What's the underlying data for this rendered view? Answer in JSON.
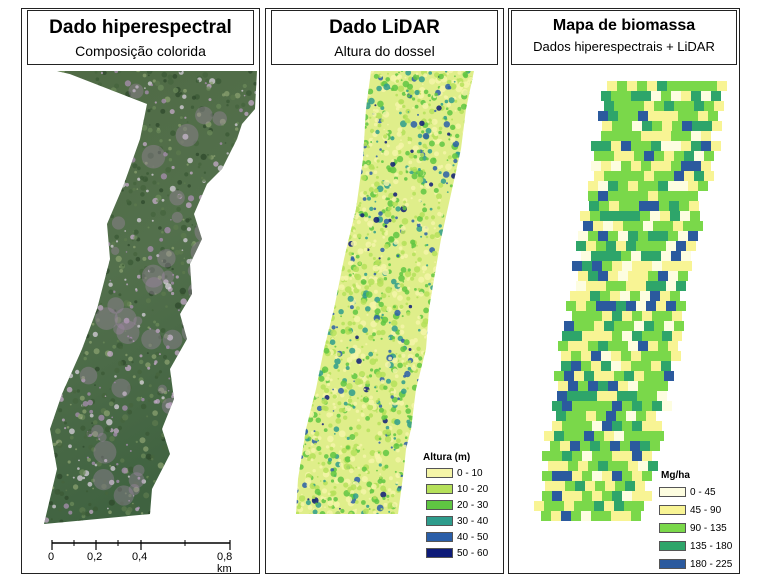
{
  "panels": {
    "hyperspectral": {
      "title": "Dado hiperespectral",
      "subtitle": "Composição colorida"
    },
    "lidar": {
      "title": "Dado LiDAR",
      "subtitle": "Altura do dossel"
    },
    "biomass": {
      "title": "Mapa de biomassa",
      "subtitle": "Dados hiperespectrais + LiDAR"
    }
  },
  "lidar_legend": {
    "title": "Altura (m)",
    "classes": [
      {
        "label": "0 - 10",
        "color": "#f5f5a8"
      },
      {
        "label": "10 - 20",
        "color": "#b5e05a"
      },
      {
        "label": "20 - 30",
        "color": "#5fc642"
      },
      {
        "label": "30 - 40",
        "color": "#2e9c8c"
      },
      {
        "label": "40 - 50",
        "color": "#2a5ea8"
      },
      {
        "label": "50 - 60",
        "color": "#0d1a78"
      }
    ]
  },
  "biomass_legend": {
    "title": "Mg/ha",
    "classes": [
      {
        "label": "0 - 45",
        "color": "#fdfde0"
      },
      {
        "label": "45 - 90",
        "color": "#f8f494"
      },
      {
        "label": "90 - 135",
        "color": "#7ad84a"
      },
      {
        "label": "135 - 180",
        "color": "#2ea56a"
      },
      {
        "label": "180 - 225",
        "color": "#2b5a9e"
      }
    ]
  },
  "scale_bar": {
    "labels": [
      "0",
      "0,2",
      "0,4",
      "0,8 km"
    ]
  }
}
